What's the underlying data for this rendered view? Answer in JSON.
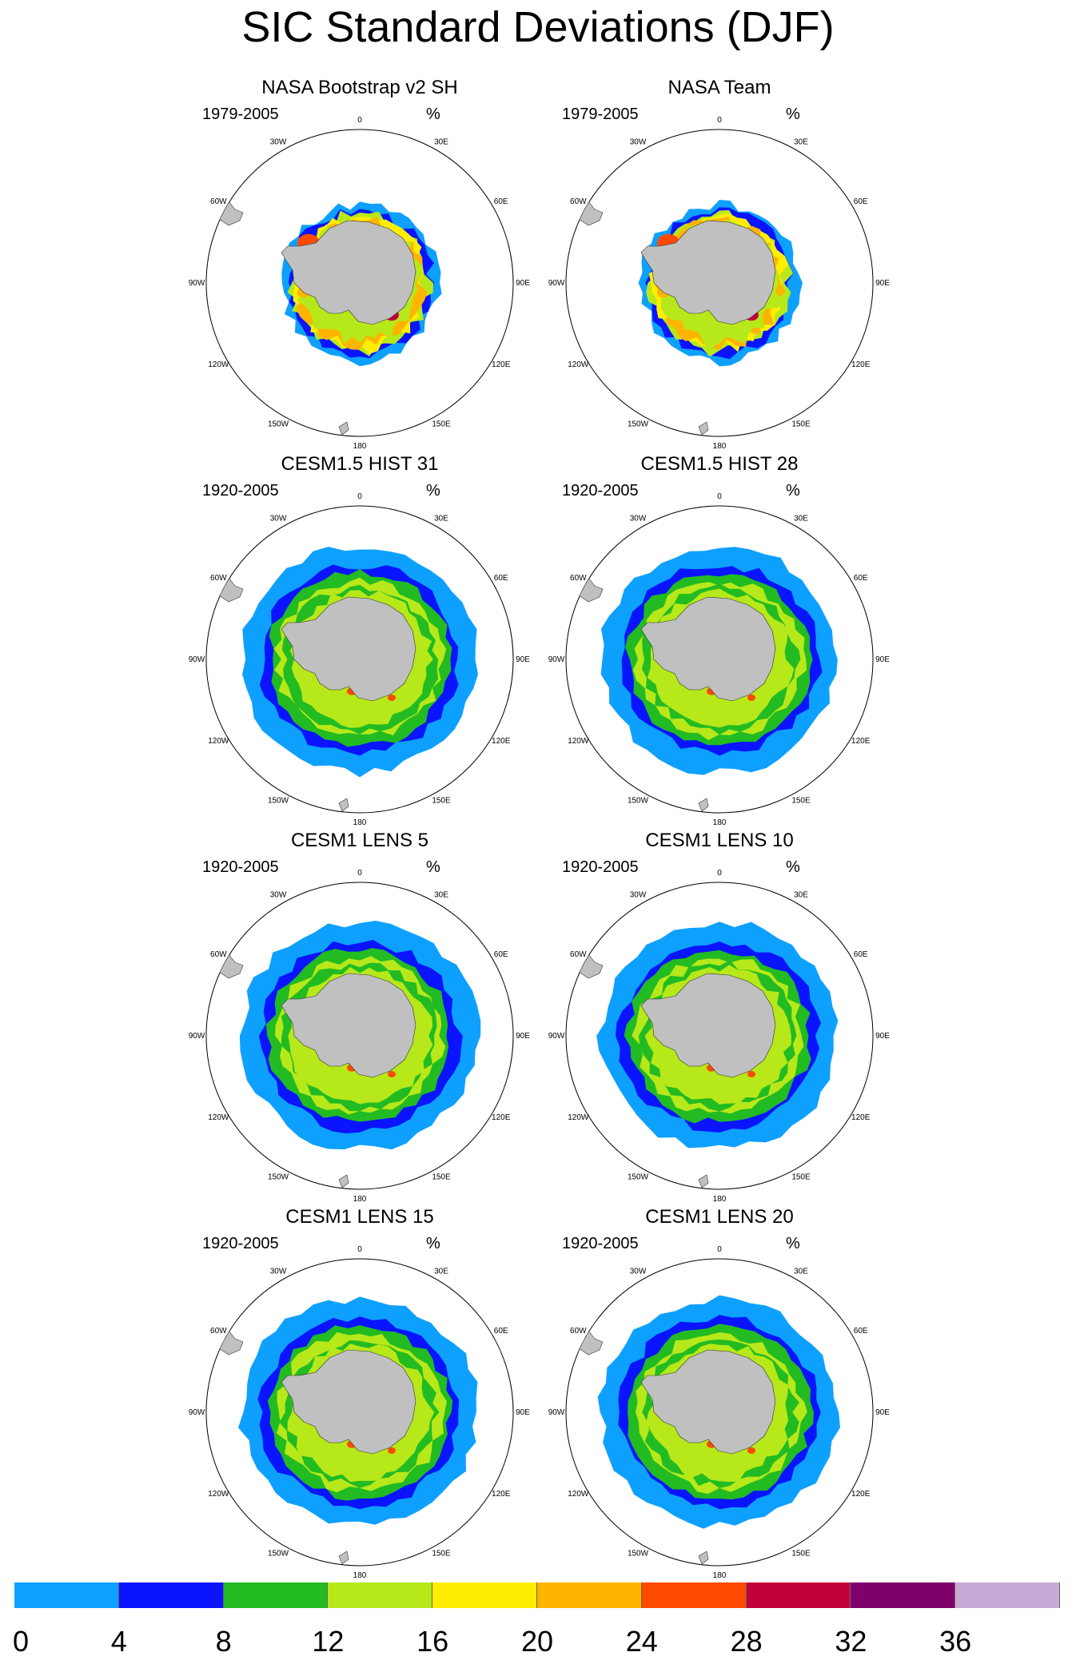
{
  "title": "SIC Standard Deviations (DJF)",
  "unit": "%",
  "lon_labels": [
    "0",
    "30E",
    "60E",
    "90E",
    "120E",
    "150E",
    "180",
    "150W",
    "120W",
    "90W",
    "60W",
    "30W"
  ],
  "colors": {
    "land": "#c0c0c0",
    "bins": [
      "#0ea0ff",
      "#0a14ff",
      "#22bb22",
      "#b7e81a",
      "#ffee00",
      "#ffb400",
      "#ff4a00",
      "#c4003a",
      "#80006b",
      "#c9a9d6"
    ]
  },
  "panels": [
    {
      "title": "NASA Bootstrap v2 SH",
      "period": "1979-2005",
      "type": "obs"
    },
    {
      "title": "NASA Team",
      "period": "1979-2005",
      "type": "obs"
    },
    {
      "title": "CESM1.5 HIST 31",
      "period": "1920-2005",
      "type": "model"
    },
    {
      "title": "CESM1.5 HIST 28",
      "period": "1920-2005",
      "type": "model"
    },
    {
      "title": "CESM1 LENS 5",
      "period": "1920-2005",
      "type": "model"
    },
    {
      "title": "CESM1 LENS 10",
      "period": "1920-2005",
      "type": "model"
    },
    {
      "title": "CESM1 LENS 15",
      "period": "1920-2005",
      "type": "model"
    },
    {
      "title": "CESM1 LENS 20",
      "period": "1920-2005",
      "type": "model"
    }
  ],
  "legend": {
    "labels": [
      "0",
      "4",
      "8",
      "12",
      "16",
      "20",
      "24",
      "28",
      "32",
      "36"
    ]
  }
}
